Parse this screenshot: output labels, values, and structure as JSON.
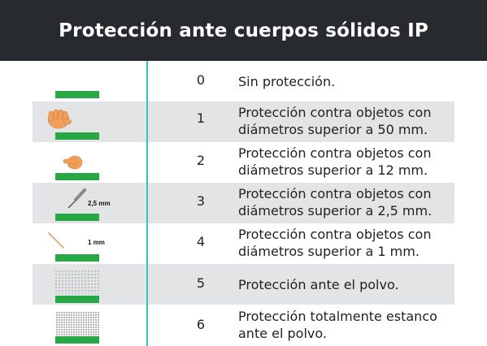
{
  "title": "Protección ante cuerpos sólidos IP",
  "colors": {
    "header_bg": "#272b30",
    "divider": "#36c4b0",
    "bar": "#27a844",
    "shade": "#e2e4e5",
    "hand": "#f0a05a"
  },
  "rows": [
    {
      "number": "0",
      "description": "Sin protección.",
      "icon": "empty-icon"
    },
    {
      "number": "1",
      "description": "Protección contra objetos con diámetros superior a 50 mm.",
      "icon": "hand-icon"
    },
    {
      "number": "2",
      "description": "Protección contra objetos con diámetros superior a 12 mm.",
      "icon": "finger-icon"
    },
    {
      "number": "3",
      "description": "Protección contra objetos con diámetros superior a 2,5 mm.",
      "icon": "screwdriver-icon",
      "label": "2,5 mm"
    },
    {
      "number": "4",
      "description": "Protección contra objetos con diámetros superior a 1 mm.",
      "icon": "wire-icon",
      "label": "1 mm"
    },
    {
      "number": "5",
      "description": "Protección ante el polvo.",
      "icon": "light-dust-icon"
    },
    {
      "number": "6",
      "description": "Protección totalmente estanco ante el polvo.",
      "icon": "dense-dust-icon"
    }
  ]
}
